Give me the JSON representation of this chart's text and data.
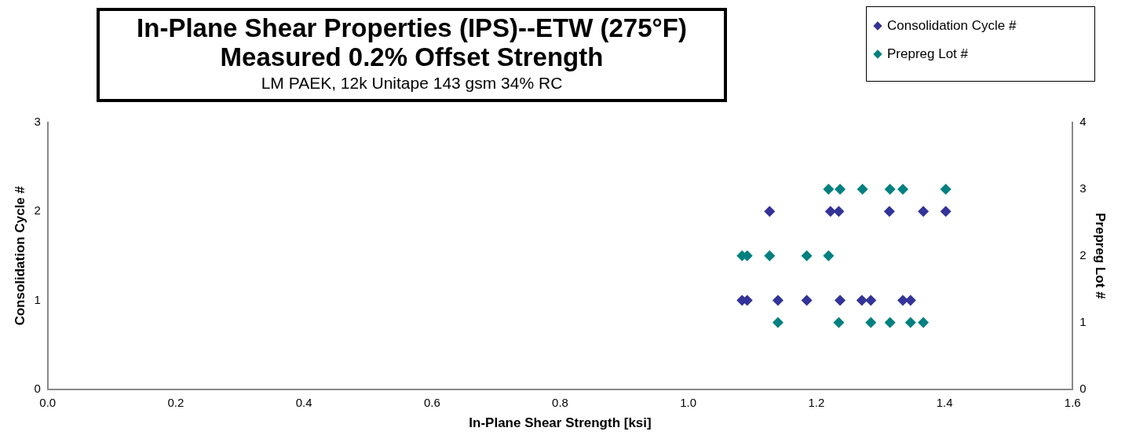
{
  "chart_data": {
    "type": "scatter",
    "title": "In-Plane Shear Properties (IPS)--ETW (275°F)",
    "subtitle": "Measured 0.2% Offset Strength",
    "annotations": [
      "LM PAEK, 12k Unitape 143 gsm 34% RC"
    ],
    "xlabel": "In-Plane Shear Strength [ksi]",
    "ylabel": "Consolidation Cycle #",
    "y2label": "Prepreg Lot #",
    "xlim": [
      0,
      1.6
    ],
    "xticks": [
      {
        "value": 0,
        "label": "0.0"
      },
      0.2,
      0.4,
      0.6,
      0.8,
      {
        "value": 1,
        "label": "1.0"
      },
      1.2,
      1.4,
      1.6
    ],
    "ylim": [
      0,
      3
    ],
    "yticks": [
      0,
      1,
      2,
      3
    ],
    "y2lim": [
      0,
      4
    ],
    "y2ticks": [
      0,
      1,
      2,
      3,
      4
    ],
    "grid": false,
    "legend": "top right",
    "marker": "diamond",
    "series": [
      {
        "name": "Consolidation Cycle #",
        "color": "#333399",
        "x": [
          1.127,
          1.218,
          1.222,
          1.235,
          1.314,
          1.367,
          1.402,
          1.084,
          1.092,
          1.14,
          1.185,
          1.237,
          1.271,
          1.285,
          1.335,
          1.347
        ],
        "values": [
          2,
          null,
          2,
          2,
          2,
          2,
          2,
          1,
          1,
          1,
          1,
          1,
          1,
          1,
          1,
          1
        ]
      },
      {
        "name": "Prepreg Lot #",
        "color": "#008080",
        "axis": "y2",
        "x": [
          1.219,
          1.237,
          1.272,
          1.315,
          1.335,
          1.402,
          1.084,
          1.092,
          1.127,
          1.185,
          1.217,
          1.219,
          1.14,
          1.235,
          1.285,
          1.315,
          1.347,
          1.367
        ],
        "values": [
          3,
          3,
          3,
          3,
          3,
          3,
          2,
          2,
          2,
          2,
          null,
          2,
          1,
          1,
          1,
          1,
          1,
          1
        ]
      }
    ]
  }
}
